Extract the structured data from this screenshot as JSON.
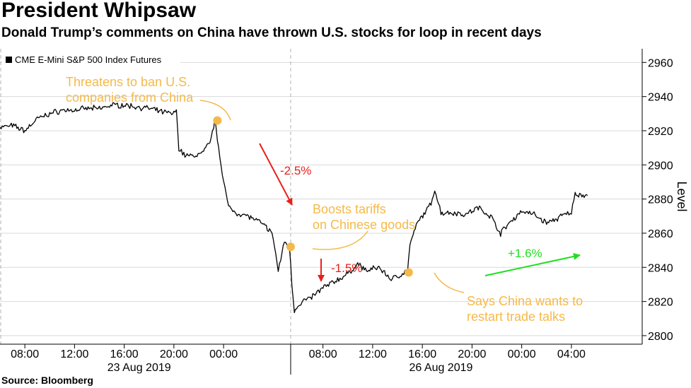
{
  "header": {
    "title": "President Whipsaw",
    "subtitle": "Donald Trump’s comments on China have thrown U.S. stocks for loop in recent days"
  },
  "footer": {
    "source": "Source: Bloomberg"
  },
  "colors": {
    "line": "#000000",
    "annotation": "#f5b94a",
    "down": "#e8201c",
    "up": "#1ee01e",
    "grid": "#d9d9d9",
    "axis": "#000000"
  },
  "chart_data": {
    "type": "line",
    "legend": {
      "position": "top-left",
      "label": "CME E-Mini S&P 500 Index Futures",
      "color": "#000000"
    },
    "ylabel": "Level",
    "ylim": [
      2795,
      2968
    ],
    "yticks": [
      2800,
      2820,
      2840,
      2860,
      2880,
      2900,
      2920,
      2940,
      2960
    ],
    "y_axis_position": "right",
    "grid": {
      "horizontal": true,
      "vertical": false
    },
    "x_unit": "hours from 23 Aug 2019 06:00 (gap over weekend)",
    "xlim": [
      0,
      51.7
    ],
    "xticks": [
      {
        "x": 2,
        "label": "08:00"
      },
      {
        "x": 6,
        "label": "12:00"
      },
      {
        "x": 10,
        "label": "16:00"
      },
      {
        "x": 14,
        "label": "20:00"
      },
      {
        "x": 18,
        "label": "00:00"
      },
      {
        "x": 26,
        "label": "08:00"
      },
      {
        "x": 30,
        "label": "12:00"
      },
      {
        "x": 34,
        "label": "16:00"
      },
      {
        "x": 38,
        "label": "20:00"
      },
      {
        "x": 42,
        "label": "00:00"
      },
      {
        "x": 46,
        "label": "04:00"
      }
    ],
    "day_labels": [
      {
        "x": 11.2,
        "label": "23 Aug 2019"
      },
      {
        "x": 35.5,
        "label": "26 Aug 2019"
      }
    ],
    "session_break_x": 23.4,
    "series": [
      {
        "values": [
          [
            0,
            2922
          ],
          [
            1,
            2923
          ],
          [
            2,
            2920
          ],
          [
            3,
            2927
          ],
          [
            4,
            2930
          ],
          [
            5,
            2932
          ],
          [
            6,
            2932
          ],
          [
            7,
            2933
          ],
          [
            8,
            2933
          ],
          [
            9,
            2935
          ],
          [
            10,
            2935
          ],
          [
            11,
            2934
          ],
          [
            12,
            2933
          ],
          [
            13,
            2931
          ],
          [
            14,
            2930
          ],
          [
            14.2,
            2932
          ],
          [
            14.4,
            2910
          ],
          [
            14.8,
            2906
          ],
          [
            15.5,
            2905
          ],
          [
            16.3,
            2907
          ],
          [
            16.9,
            2913
          ],
          [
            17.3,
            2926
          ],
          [
            17.8,
            2900
          ],
          [
            18.1,
            2887
          ],
          [
            18.4,
            2875
          ],
          [
            19,
            2872
          ],
          [
            20,
            2870
          ],
          [
            21,
            2866
          ],
          [
            21.7,
            2862
          ],
          [
            22.0,
            2857
          ],
          [
            22.4,
            2838
          ],
          [
            22.9,
            2855
          ],
          [
            23.3,
            2852
          ],
          [
            23.5,
            2830
          ],
          [
            23.7,
            2815
          ],
          [
            24.3,
            2820
          ],
          [
            25,
            2822
          ],
          [
            26,
            2828
          ],
          [
            27,
            2832
          ],
          [
            28,
            2836
          ],
          [
            28.8,
            2842
          ],
          [
            29.5,
            2838
          ],
          [
            30.5,
            2840
          ],
          [
            31.5,
            2833
          ],
          [
            32.3,
            2836
          ],
          [
            32.8,
            2838
          ],
          [
            33.0,
            2853
          ],
          [
            33.6,
            2866
          ],
          [
            34.3,
            2873
          ],
          [
            34.7,
            2877
          ],
          [
            35.0,
            2886
          ],
          [
            35.5,
            2872
          ],
          [
            36.5,
            2872
          ],
          [
            37.5,
            2871
          ],
          [
            38.5,
            2875
          ],
          [
            39.5,
            2870
          ],
          [
            40.3,
            2860
          ],
          [
            41,
            2866
          ],
          [
            42,
            2873
          ],
          [
            43,
            2871
          ],
          [
            44,
            2866
          ],
          [
            44.7,
            2868
          ],
          [
            45.5,
            2871
          ],
          [
            46.0,
            2872
          ],
          [
            46.3,
            2883
          ],
          [
            47.3,
            2882
          ]
        ]
      }
    ],
    "annotations": [
      {
        "text_lines": [
          "Threatens to ban U.S.",
          "companies from China"
        ],
        "point": [
          17.5,
          2926
        ],
        "color": "#f5b94a"
      },
      {
        "text_lines": [
          "Boosts tariffs",
          "on Chinese goods"
        ],
        "point": [
          23.4,
          2852
        ],
        "color": "#f5b94a"
      },
      {
        "text_lines": [
          "Says China wants to",
          "restart trade talks"
        ],
        "point": [
          32.9,
          2837
        ],
        "color": "#f5b94a"
      },
      {
        "text_lines": [
          "-2.5%"
        ],
        "color": "#e8201c"
      },
      {
        "text_lines": [
          "-1.5%"
        ],
        "color": "#e8201c"
      },
      {
        "text_lines": [
          "+1.6%"
        ],
        "color": "#1ee01e"
      }
    ]
  }
}
